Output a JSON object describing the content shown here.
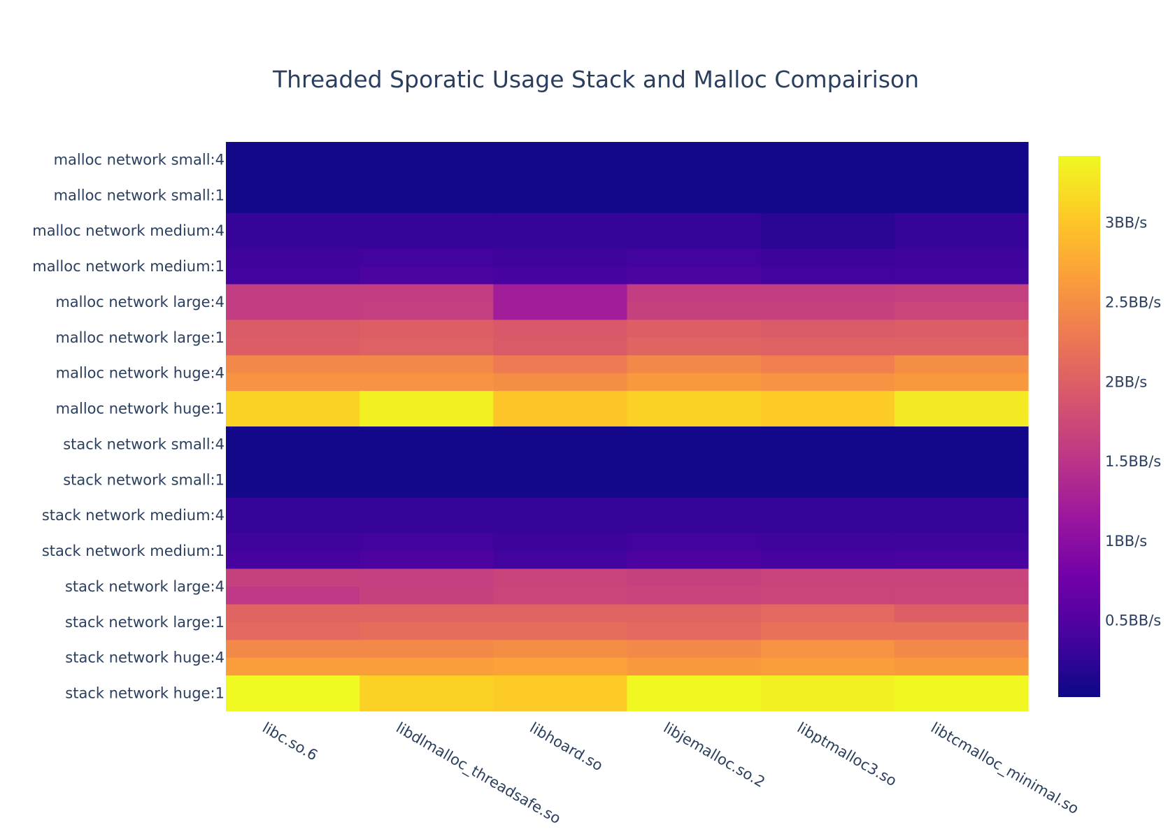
{
  "chart_data": {
    "type": "heatmap",
    "title": "Threaded Sporatic Usage Stack and Malloc Compairison",
    "x": [
      "libc.so.6",
      "libdlmalloc_threadsafe.so",
      "libhoard.so",
      "libjemalloc.so.2",
      "libptmalloc3.so",
      "libtcmalloc_minimal.so"
    ],
    "y": [
      "malloc network small:4",
      "malloc network small:1",
      "malloc network medium:4",
      "malloc network medium:1",
      "malloc network large:4",
      "malloc network large:1",
      "malloc network huge:4",
      "malloc network huge:1",
      "stack network small:4",
      "stack network small:1",
      "stack network medium:4",
      "stack network medium:1",
      "stack network large:4",
      "stack network large:1",
      "stack network huge:4",
      "stack network huge:1"
    ],
    "rows": [
      {
        "label": "malloc network small:4",
        "values": [
          [
            0.05,
            0.05,
            0.05,
            0.05,
            0.05,
            0.05
          ],
          [
            0.05,
            0.05,
            0.05,
            0.05,
            0.05,
            0.05
          ]
        ]
      },
      {
        "label": "malloc network small:1",
        "values": [
          [
            0.05,
            0.05,
            0.05,
            0.05,
            0.05,
            0.05
          ],
          [
            0.05,
            0.05,
            0.05,
            0.05,
            0.05,
            0.05
          ]
        ]
      },
      {
        "label": "malloc network medium:4",
        "values": [
          [
            0.3,
            0.3,
            0.28,
            0.28,
            0.22,
            0.3
          ],
          [
            0.3,
            0.3,
            0.28,
            0.28,
            0.22,
            0.3
          ]
        ]
      },
      {
        "label": "malloc network medium:1",
        "values": [
          [
            0.35,
            0.38,
            0.35,
            0.38,
            0.33,
            0.35
          ],
          [
            0.38,
            0.45,
            0.4,
            0.45,
            0.38,
            0.38
          ]
        ]
      },
      {
        "label": "malloc network large:4",
        "values": [
          [
            1.6,
            1.6,
            1.22,
            1.6,
            1.6,
            1.62
          ],
          [
            1.6,
            1.62,
            1.22,
            1.65,
            1.65,
            1.7
          ]
        ]
      },
      {
        "label": "malloc network large:1",
        "values": [
          [
            1.95,
            2.0,
            1.92,
            2.0,
            1.95,
            1.98
          ],
          [
            1.98,
            2.02,
            1.95,
            2.05,
            2.02,
            2.02
          ]
        ]
      },
      {
        "label": "malloc network huge:4",
        "values": [
          [
            2.45,
            2.45,
            2.3,
            2.45,
            2.35,
            2.5
          ],
          [
            2.55,
            2.55,
            2.5,
            2.6,
            2.55,
            2.6
          ]
        ]
      },
      {
        "label": "malloc network huge:1",
        "values": [
          [
            3.1,
            3.35,
            3.0,
            3.1,
            3.05,
            3.3
          ],
          [
            3.1,
            3.35,
            3.0,
            3.1,
            3.05,
            3.3
          ]
        ]
      },
      {
        "label": "stack network small:4",
        "values": [
          [
            0.05,
            0.05,
            0.05,
            0.05,
            0.05,
            0.05
          ],
          [
            0.05,
            0.05,
            0.05,
            0.05,
            0.05,
            0.05
          ]
        ]
      },
      {
        "label": "stack network small:1",
        "values": [
          [
            0.05,
            0.05,
            0.05,
            0.05,
            0.05,
            0.05
          ],
          [
            0.05,
            0.05,
            0.05,
            0.05,
            0.05,
            0.05
          ]
        ]
      },
      {
        "label": "stack network medium:4",
        "values": [
          [
            0.28,
            0.28,
            0.28,
            0.28,
            0.28,
            0.28
          ],
          [
            0.3,
            0.3,
            0.3,
            0.3,
            0.3,
            0.3
          ]
        ]
      },
      {
        "label": "stack network medium:1",
        "values": [
          [
            0.35,
            0.38,
            0.33,
            0.38,
            0.35,
            0.35
          ],
          [
            0.4,
            0.45,
            0.38,
            0.45,
            0.4,
            0.42
          ]
        ]
      },
      {
        "label": "stack network large:4",
        "values": [
          [
            1.65,
            1.62,
            1.68,
            1.65,
            1.68,
            1.68
          ],
          [
            1.55,
            1.65,
            1.7,
            1.68,
            1.7,
            1.7
          ]
        ]
      },
      {
        "label": "stack network large:1",
        "values": [
          [
            2.05,
            2.05,
            2.05,
            2.05,
            2.1,
            2.0
          ],
          [
            2.1,
            2.15,
            2.15,
            2.1,
            2.2,
            2.2
          ]
        ]
      },
      {
        "label": "stack network huge:4",
        "values": [
          [
            2.45,
            2.45,
            2.5,
            2.45,
            2.55,
            2.45
          ],
          [
            2.65,
            2.65,
            2.7,
            2.6,
            2.65,
            2.6
          ]
        ]
      },
      {
        "label": "stack network huge:1",
        "values": [
          [
            3.45,
            3.1,
            3.05,
            3.4,
            3.35,
            3.4
          ],
          [
            3.45,
            3.1,
            3.05,
            3.4,
            3.35,
            3.4
          ]
        ]
      }
    ],
    "zmin": 0.02,
    "zmax": 3.42,
    "colorscale": "plasma",
    "colorbar": {
      "ticks": [
        0.5,
        1.0,
        1.5,
        2.0,
        2.5,
        3.0
      ],
      "tick_labels": [
        "0.5BB/s",
        "1BB/s",
        "1.5BB/s",
        "2BB/s",
        "2.5BB/s",
        "3BB/s"
      ]
    },
    "grid": false
  }
}
